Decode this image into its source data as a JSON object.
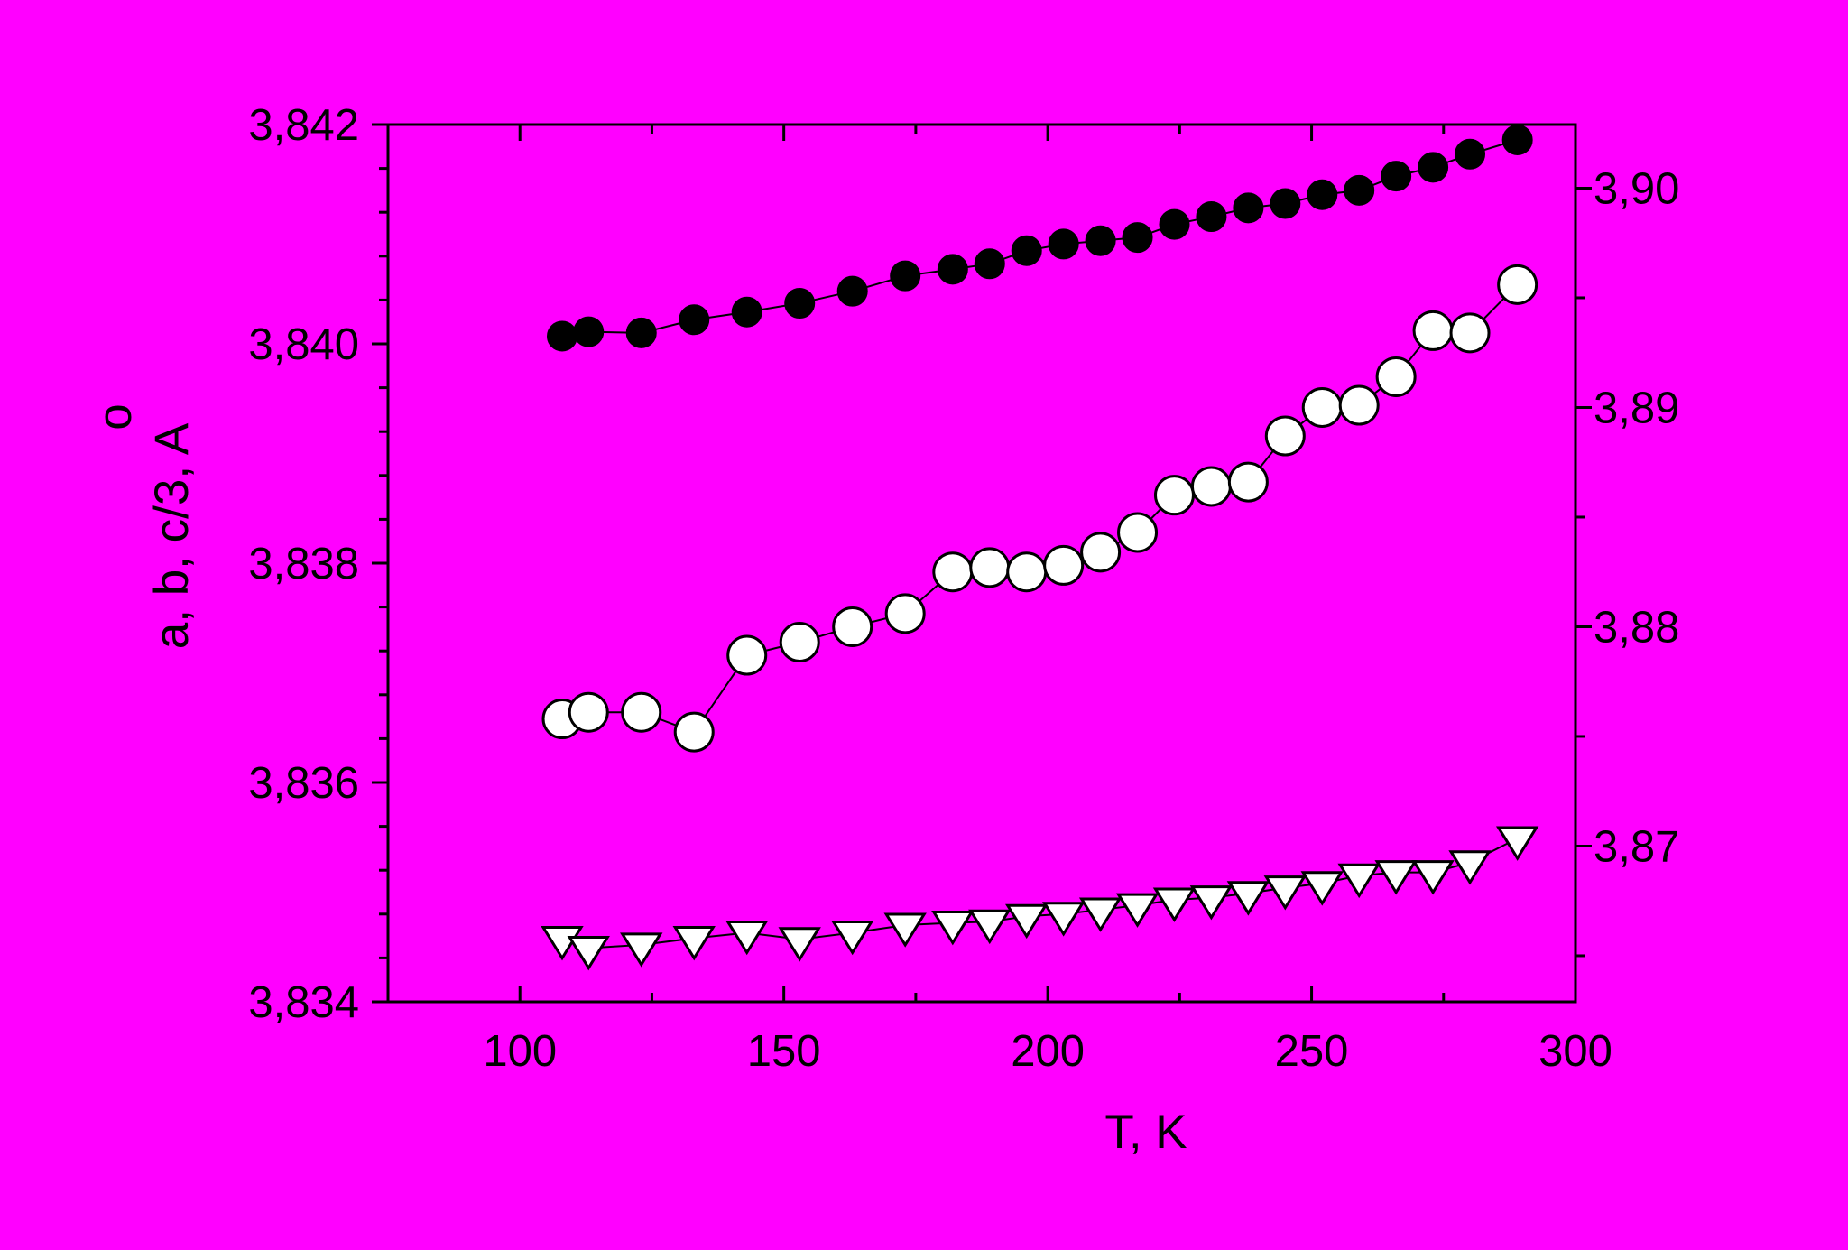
{
  "chart_data": {
    "type": "scatter",
    "xlabel": "T, K",
    "ylabel": "a, b, c/3,  A",
    "ylabel_ring": "o",
    "xlim": [
      75,
      300
    ],
    "ylim_left": [
      3.834,
      3.842
    ],
    "ylim_right": [
      3.8629,
      3.9029
    ],
    "x_ticks": [
      100,
      150,
      200,
      250,
      300
    ],
    "x_tick_labels": [
      "100",
      "150",
      "200",
      "250",
      "300"
    ],
    "y_left_ticks": [
      3.834,
      3.836,
      3.838,
      3.84,
      3.842
    ],
    "y_left_tick_labels": [
      "3,834",
      "3,836",
      "3,838",
      "3,840",
      "3,842"
    ],
    "y_right_ticks": [
      3.87,
      3.88,
      3.89,
      3.9
    ],
    "y_right_tick_labels": [
      "3,87",
      "3,88",
      "3,89",
      "3,90"
    ],
    "grid": false,
    "colors": {
      "background": "#ff00ff",
      "axis": "#000000",
      "filled_marker": "#000000",
      "open_marker": "#ffffff"
    },
    "series": [
      {
        "marker": "filled-circle",
        "axis": "left",
        "connected": true,
        "x": [
          108,
          113,
          123,
          133,
          143,
          153,
          163,
          173,
          182,
          189,
          196,
          203,
          210,
          217,
          224,
          231,
          238,
          245,
          252,
          259,
          266,
          273,
          280,
          289
        ],
        "y": [
          3.84007,
          3.84011,
          3.8401,
          3.84022,
          3.84029,
          3.84037,
          3.84048,
          3.84062,
          3.84068,
          3.84073,
          3.84085,
          3.84091,
          3.84094,
          3.84097,
          3.84109,
          3.84116,
          3.84124,
          3.84128,
          3.84136,
          3.8414,
          3.84153,
          3.84161,
          3.84173,
          3.84186
        ]
      },
      {
        "marker": "open-circle",
        "axis": "right",
        "connected": true,
        "x": [
          108,
          113,
          123,
          133,
          143,
          153,
          163,
          173,
          182,
          189,
          196,
          203,
          210,
          217,
          224,
          231,
          238,
          245,
          252,
          259,
          266,
          273,
          280,
          289
        ],
        "y": [
          3.8758,
          3.8761,
          3.8761,
          3.8752,
          3.8787,
          3.8793,
          3.88,
          3.8806,
          3.8825,
          3.8827,
          3.8825,
          3.8828,
          3.8834,
          3.8843,
          3.886,
          3.8864,
          3.8866,
          3.8887,
          3.89,
          3.8901,
          3.8914,
          3.8935,
          3.8934,
          3.8956
        ]
      },
      {
        "marker": "open-triangle-down",
        "axis": "left",
        "connected": true,
        "x": [
          108,
          113,
          123,
          133,
          143,
          153,
          163,
          173,
          182,
          189,
          196,
          203,
          210,
          217,
          224,
          231,
          238,
          245,
          252,
          259,
          266,
          273,
          280,
          289
        ],
        "y": [
          3.83458,
          3.83449,
          3.83452,
          3.83458,
          3.83463,
          3.83457,
          3.83463,
          3.8347,
          3.83472,
          3.83473,
          3.83478,
          3.8348,
          3.83484,
          3.83488,
          3.83493,
          3.83495,
          3.83499,
          3.83504,
          3.83508,
          3.83515,
          3.83518,
          3.83518,
          3.83527,
          3.83549
        ]
      }
    ]
  }
}
